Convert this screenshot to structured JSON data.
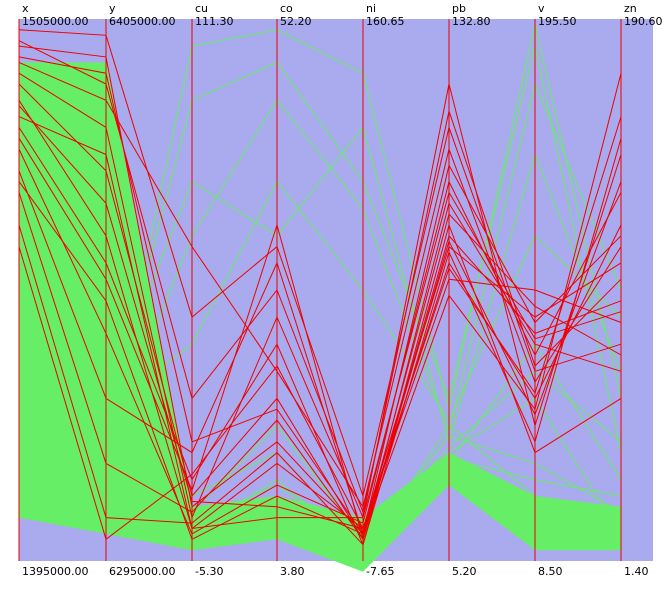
{
  "chart_data": {
    "type": "parallel-coordinates",
    "title": "",
    "axes": [
      {
        "name": "x",
        "max": "1505000.00",
        "min": "1395000.00",
        "range": [
          1395000.0,
          1505000.0
        ]
      },
      {
        "name": "y",
        "max": "6405000.00",
        "min": "6295000.00",
        "range": [
          6295000.0,
          6405000.0
        ]
      },
      {
        "name": "cu",
        "max": "111.30",
        "min": "-5.30",
        "range": [
          -5.3,
          111.3
        ]
      },
      {
        "name": "co",
        "max": "52.20",
        "min": "3.80",
        "range": [
          3.8,
          52.2
        ]
      },
      {
        "name": "ni",
        "max": "160.65",
        "min": "-7.65",
        "range": [
          -7.65,
          160.65
        ]
      },
      {
        "name": "pb",
        "max": "132.80",
        "min": "5.20",
        "range": [
          5.2,
          132.8
        ]
      },
      {
        "name": "v",
        "max": "195.50",
        "min": "8.50",
        "range": [
          8.5,
          195.5
        ]
      },
      {
        "name": "zn",
        "max": "190.60",
        "min": "1.40",
        "range": [
          1.4,
          190.6
        ]
      }
    ],
    "series": [
      {
        "color": "#ee0000",
        "values": [
          [
            0.98,
            0.97,
            0.45,
            0.58,
            0.12,
            0.8,
            0.35,
            0.4
          ],
          [
            0.95,
            0.93,
            0.1,
            0.22,
            0.05,
            0.55,
            0.3,
            0.62
          ],
          [
            0.9,
            0.8,
            0.08,
            0.45,
            0.08,
            0.88,
            0.25,
            0.75
          ],
          [
            0.88,
            0.72,
            0.12,
            0.3,
            0.04,
            0.66,
            0.4,
            0.35
          ],
          [
            0.85,
            0.6,
            0.06,
            0.18,
            0.06,
            0.58,
            0.45,
            0.55
          ],
          [
            0.8,
            0.55,
            0.15,
            0.4,
            0.03,
            0.62,
            0.2,
            0.3
          ],
          [
            0.76,
            0.42,
            0.05,
            0.14,
            0.07,
            0.7,
            0.38,
            0.68
          ],
          [
            0.72,
            0.3,
            0.2,
            0.55,
            0.05,
            0.49,
            0.28,
            0.9
          ],
          [
            0.68,
            0.18,
            0.09,
            0.26,
            0.04,
            0.6,
            0.42,
            0.48
          ],
          [
            0.92,
            0.85,
            0.58,
            0.35,
            0.1,
            0.76,
            0.33,
            0.58
          ],
          [
            0.84,
            0.66,
            0.11,
            0.1,
            0.06,
            0.52,
            0.5,
            0.44
          ],
          [
            0.62,
            0.08,
            0.07,
            0.2,
            0.03,
            0.57,
            0.22,
            0.78
          ],
          [
            0.96,
            0.88,
            0.3,
            0.5,
            0.09,
            0.83,
            0.36,
            0.52
          ],
          [
            0.7,
            0.48,
            0.04,
            0.12,
            0.05,
            0.64,
            0.47,
            0.38
          ],
          [
            0.78,
            0.52,
            0.13,
            0.62,
            0.04,
            0.59,
            0.27,
            0.7
          ],
          [
            0.82,
            0.75,
            0.06,
            0.08,
            0.08,
            0.68,
            0.41,
            0.46
          ],
          [
            0.58,
            0.04,
            0.16,
            0.36,
            0.06,
            0.54,
            0.31,
            0.82
          ],
          [
            0.93,
            0.9,
            0.22,
            0.28,
            0.05,
            0.73,
            0.44,
            0.6
          ]
        ]
      },
      {
        "color": "#66ee66",
        "values": [
          [
            0.4,
            0.1,
            0.05,
            0.15,
            0.02,
            0.2,
            0.3,
            0.05
          ],
          [
            0.3,
            0.05,
            0.03,
            0.1,
            0.01,
            0.25,
            0.12,
            0.08
          ],
          [
            0.55,
            0.25,
            0.85,
            0.92,
            0.7,
            0.3,
            0.95,
            0.2
          ],
          [
            0.65,
            0.35,
            0.12,
            0.2,
            0.03,
            0.18,
            0.4,
            0.15
          ],
          [
            0.2,
            0.08,
            0.02,
            0.05,
            0.02,
            0.15,
            0.1,
            0.06
          ],
          [
            0.45,
            0.3,
            0.7,
            0.6,
            0.8,
            0.22,
            0.75,
            0.35
          ],
          [
            0.35,
            0.15,
            0.04,
            0.08,
            0.01,
            0.17,
            0.05,
            0.1
          ],
          [
            0.5,
            0.2,
            0.6,
            0.85,
            0.65,
            0.24,
            0.88,
            0.5
          ],
          [
            0.25,
            0.12,
            0.06,
            0.12,
            0.02,
            0.19,
            0.15,
            0.12
          ],
          [
            0.6,
            0.4,
            0.09,
            0.25,
            0.04,
            0.21,
            0.35,
            0.22
          ],
          [
            0.15,
            0.06,
            0.03,
            0.06,
            0.01,
            0.16,
            0.08,
            0.04
          ],
          [
            0.48,
            0.28,
            0.4,
            0.7,
            0.5,
            0.26,
            0.6,
            0.45
          ],
          [
            0.38,
            0.18,
            0.07,
            0.14,
            0.03,
            0.23,
            0.18,
            0.09
          ],
          [
            0.42,
            0.22,
            0.95,
            0.98,
            0.9,
            0.28,
            0.99,
            0.3
          ]
        ]
      }
    ],
    "grid": false,
    "legend": "none",
    "background_color": "#aaaaee",
    "axis_color": "#ee0000",
    "filtered_color": "#66ee66",
    "selected_color": "#ee0000"
  }
}
